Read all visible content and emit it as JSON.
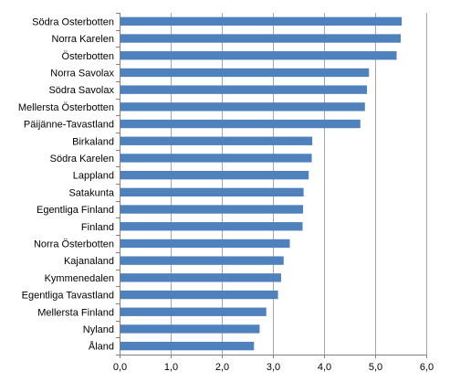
{
  "chart_data": {
    "type": "bar",
    "orientation": "horizontal",
    "categories": [
      "Södra Osterbotten",
      "Norra Karelen",
      "Österbotten",
      "Norra Savolax",
      "Södra Savolax",
      "Mellersta Österbotten",
      "Päijänne-Tavastland",
      "Birkaland",
      "Södra Karelen",
      "Lappland",
      "Satakunta",
      "Egentliga Finland",
      "Finland",
      "Norra Österbotten",
      "Kajanaland",
      "Kymmenedalen",
      "Egentliga Tavastland",
      "Mellersta Finland",
      "Nyland",
      "Åland"
    ],
    "values": [
      5.52,
      5.5,
      5.42,
      4.88,
      4.84,
      4.8,
      4.71,
      3.77,
      3.76,
      3.7,
      3.6,
      3.59,
      3.58,
      3.33,
      3.21,
      3.16,
      3.1,
      2.87,
      2.74,
      2.63
    ],
    "xlim": [
      0,
      6
    ],
    "xticks": [
      "0,0",
      "1,0",
      "2,0",
      "3,0",
      "4,0",
      "5,0",
      "6,0"
    ],
    "grid": "vertical",
    "bar_color": "#4f81bd",
    "grid_color": "#a6a6a6",
    "axis_color": "#808080"
  }
}
